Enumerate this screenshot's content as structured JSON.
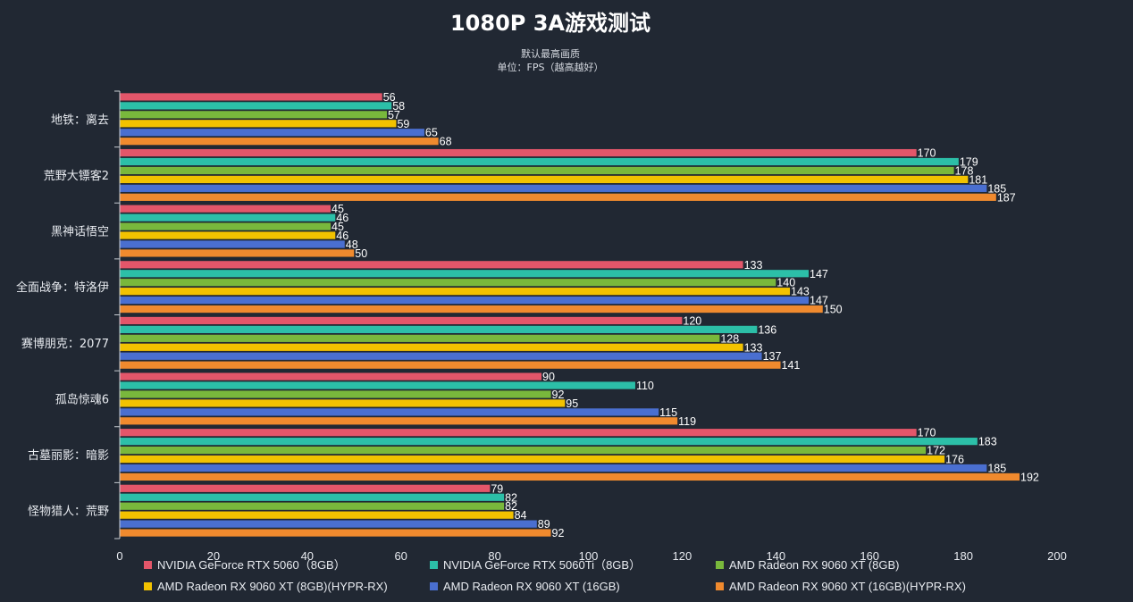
{
  "chart_data": {
    "type": "bar",
    "orientation": "horizontal",
    "title": "1080P 3A游戏测试",
    "subtitle": [
      "默认最高画质",
      "单位：FPS（越高越好）"
    ],
    "categories": [
      "地铁：离去",
      "荒野大镖客2",
      "黑神话悟空",
      "全面战争：特洛伊",
      "赛博朋克：2077",
      "孤岛惊魂6",
      "古墓丽影：暗影",
      "怪物猎人：荒野"
    ],
    "series": [
      {
        "name": "NVIDIA GeForce RTX 5060（8GB）",
        "color": "#e3566a",
        "values": [
          56,
          170,
          45,
          133,
          120,
          90,
          170,
          79
        ]
      },
      {
        "name": "NVIDIA GeForce RTX 5060Ti（8GB）",
        "color": "#2cbfa8",
        "values": [
          58,
          179,
          46,
          147,
          136,
          110,
          183,
          82
        ]
      },
      {
        "name": "AMD Radeon RX 9060 XT (8GB)",
        "color": "#79b83c",
        "values": [
          57,
          178,
          45,
          140,
          128,
          92,
          172,
          82
        ]
      },
      {
        "name": "AMD Radeon RX 9060 XT (8GB)(HYPR-RX)",
        "color": "#f2c200",
        "values": [
          59,
          181,
          46,
          143,
          133,
          95,
          176,
          84
        ]
      },
      {
        "name": "AMD Radeon RX 9060 XT (16GB)",
        "color": "#4a6fd0",
        "values": [
          65,
          185,
          48,
          147,
          137,
          115,
          185,
          89
        ]
      },
      {
        "name": "AMD Radeon RX 9060 XT (16GB)(HYPR-RX)",
        "color": "#f08a2e",
        "values": [
          68,
          187,
          50,
          150,
          141,
          119,
          192,
          92
        ]
      }
    ],
    "xlim": [
      0,
      200
    ],
    "xticks": [
      0,
      20,
      40,
      60,
      80,
      100,
      120,
      140,
      160,
      180,
      200
    ],
    "grid": false,
    "legend_position": "bottom"
  }
}
